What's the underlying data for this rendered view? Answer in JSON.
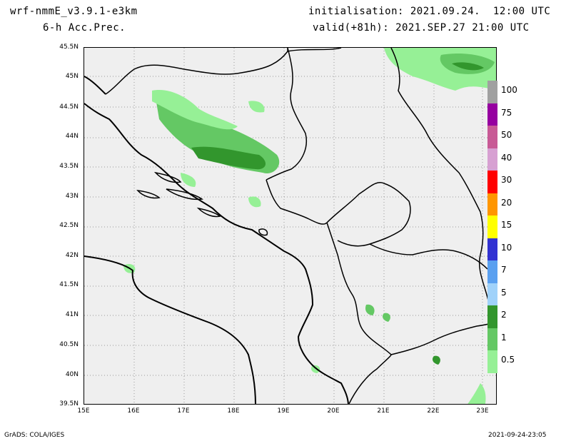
{
  "header": {
    "model": "wrf-nmmE_v3.9.1-e3km",
    "field": "6-h Acc.Prec.",
    "init": "initialisation: 2021.09.24.  12:00 UTC",
    "valid": "valid(+81h): 2021.SEP.27 21:00 UTC"
  },
  "map": {
    "lat_labels": [
      "45.5N",
      "45N",
      "44.5N",
      "44N",
      "43.5N",
      "43N",
      "42.5N",
      "42N",
      "41.5N",
      "41N",
      "40.5N",
      "40N",
      "39.5N"
    ],
    "lon_labels": [
      "15E",
      "16E",
      "17E",
      "18E",
      "19E",
      "20E",
      "21E",
      "22E",
      "23E"
    ],
    "land_color": "#efefef",
    "coast_color": "#000000",
    "grid": "dotted"
  },
  "legend": {
    "labels": [
      "100",
      "75",
      "50",
      "40",
      "30",
      "20",
      "15",
      "10",
      "7",
      "5",
      "2",
      "1",
      "0.5"
    ],
    "colors": [
      "#a0a0a0",
      "#9600a0",
      "#c85a96",
      "#d7a0d2",
      "#ff0000",
      "#ff9600",
      "#ffff00",
      "#3232d2",
      "#5aa0f0",
      "#a0d2fa",
      "#32962d",
      "#64c864",
      "#96f096"
    ]
  },
  "footer": {
    "left": "GrADS: COLA/IGES",
    "right": "2021-09-24-23:05"
  }
}
